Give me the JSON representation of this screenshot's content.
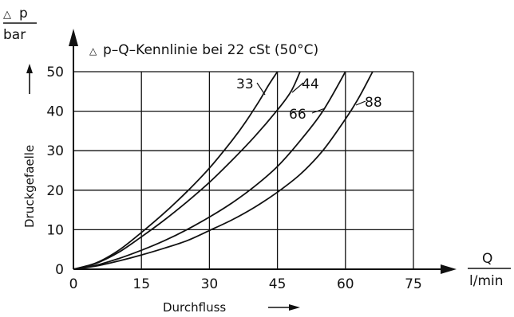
{
  "chart_data": {
    "type": "line",
    "title": "p–Q–Kennlinie bei 22 cSt (50°C)",
    "xlabel": "Durchfluss",
    "ylabel": "Druckgefaelle",
    "x_unit_top": "Q",
    "x_unit_bottom": "l/min",
    "y_unit_top": "p",
    "y_unit_bottom": "bar",
    "delta_symbol": "△",
    "xlim": [
      0,
      75
    ],
    "ylim": [
      0,
      50
    ],
    "x_ticks": [
      0,
      15,
      30,
      45,
      60,
      75
    ],
    "y_ticks": [
      0,
      10,
      20,
      30,
      40,
      50
    ],
    "x_tick_labels": [
      "0",
      "15",
      "30",
      "45",
      "60",
      "75"
    ],
    "y_tick_labels": [
      "0",
      "10",
      "20",
      "30",
      "40",
      "50"
    ],
    "grid": true,
    "series": [
      {
        "name": "33",
        "x": [
          0,
          5,
          10,
          15,
          20,
          25,
          30,
          35,
          38,
          41,
          43,
          45
        ],
        "y": [
          0,
          1.6,
          4.8,
          9.3,
          14.2,
          19.6,
          25.6,
          32.6,
          37.3,
          42.6,
          46.5,
          50
        ]
      },
      {
        "name": "44",
        "x": [
          0,
          5,
          10,
          15,
          20,
          25,
          30,
          35,
          40,
          45,
          48,
          50
        ],
        "y": [
          0,
          1.5,
          4.3,
          8.2,
          12.4,
          17.0,
          22.0,
          27.6,
          33.6,
          40.3,
          45.0,
          50
        ]
      },
      {
        "name": "66",
        "x": [
          0,
          5,
          10,
          15,
          20,
          25,
          30,
          35,
          40,
          45,
          50,
          55,
          60
        ],
        "y": [
          0,
          1.0,
          2.7,
          4.8,
          7.2,
          10.0,
          13.2,
          16.8,
          21.0,
          26.0,
          32.5,
          40.0,
          50
        ]
      },
      {
        "name": "88",
        "x": [
          0,
          5,
          10,
          15,
          20,
          25,
          30,
          35,
          40,
          45,
          50,
          55,
          60,
          63,
          66
        ],
        "y": [
          0,
          0.8,
          2.1,
          3.6,
          5.3,
          7.2,
          9.8,
          12.5,
          15.7,
          19.5,
          24.0,
          30.0,
          38.0,
          43.5,
          50
        ]
      }
    ],
    "curve_labels": [
      {
        "text": "33",
        "series": "33"
      },
      {
        "text": "44",
        "series": "44"
      },
      {
        "text": "66",
        "series": "66"
      },
      {
        "text": "88",
        "series": "88"
      }
    ]
  }
}
